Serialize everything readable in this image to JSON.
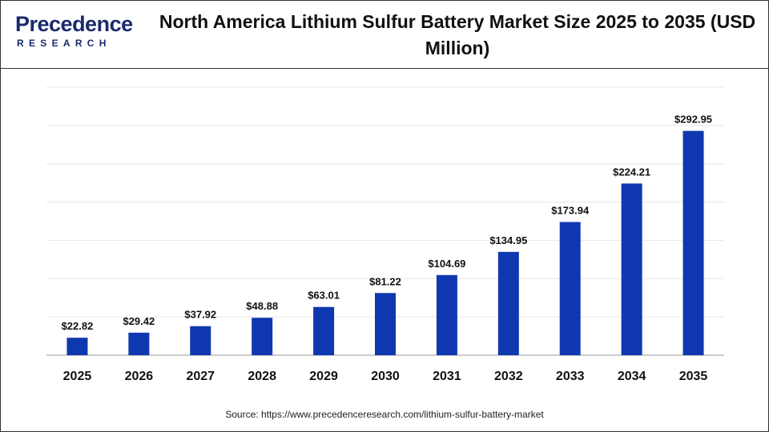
{
  "logo": {
    "name": "Precedence",
    "subtitle": "RESEARCH"
  },
  "chart_data": {
    "type": "bar",
    "title": "North America Lithium Sulfur Battery Market Size 2025 to 2035 (USD Million)",
    "source": "Source: https://www.precedenceresearch.com/lithium-sulfur-battery-market",
    "categories": [
      "2025",
      "2026",
      "2027",
      "2028",
      "2029",
      "2030",
      "2031",
      "2032",
      "2033",
      "2034",
      "2035"
    ],
    "values": [
      22.82,
      29.42,
      37.92,
      48.88,
      63.01,
      81.22,
      104.69,
      134.95,
      173.94,
      224.21,
      292.95
    ],
    "value_labels": [
      "$22.82",
      "$29.42",
      "$37.92",
      "$48.88",
      "$63.01",
      "$81.22",
      "$104.69",
      "$134.95",
      "$173.94",
      "$224.21",
      "$292.95"
    ],
    "color": "#0f38b0",
    "ylim": [
      0,
      350
    ],
    "yticks": [
      0,
      50,
      100,
      150,
      200,
      250,
      300,
      350
    ],
    "grid": true
  }
}
